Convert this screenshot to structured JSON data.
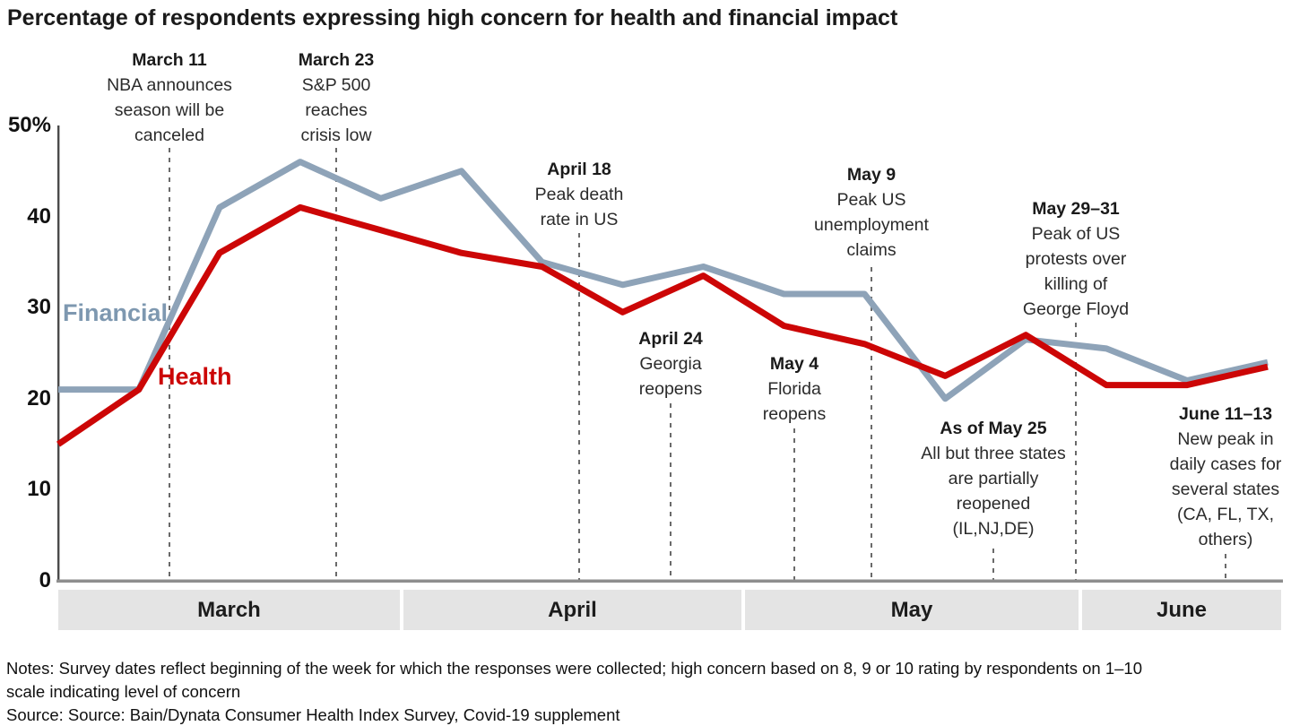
{
  "title": "Percentage of respondents expressing high concern for health and financial impact",
  "notes": {
    "line1": "Notes: Survey dates reflect beginning of the week for which the responses were collected; high concern based on 8, 9 or 10 rating by respondents on 1–10",
    "line2": "scale indicating level of concern",
    "line3": "Source: Source: Bain/Dynata Consumer Health Index Survey, Covid-19 supplement"
  },
  "chart_data": {
    "type": "line",
    "title": "Percentage of respondents expressing high concern for health and financial impact",
    "ylabel": "",
    "ylim": [
      0,
      50
    ],
    "y_ticks": [
      {
        "label": "50%",
        "value": 50
      },
      {
        "label": "40",
        "value": 40
      },
      {
        "label": "30",
        "value": 30
      },
      {
        "label": "20",
        "value": 20
      },
      {
        "label": "10",
        "value": 10
      },
      {
        "label": "0",
        "value": 0
      }
    ],
    "x_axis": {
      "granularity": "weekly survey points",
      "months": [
        {
          "label": "March",
          "points": 5
        },
        {
          "label": "April",
          "points": 4
        },
        {
          "label": "May",
          "points": 4
        },
        {
          "label": "June",
          "points": 3
        }
      ]
    },
    "grid": "off",
    "legend_position": "labels-on-lines",
    "series": [
      {
        "name": "Financial",
        "color": "#8ea3b8",
        "values": [
          21,
          21,
          41,
          46,
          42,
          45,
          35,
          32.5,
          34.5,
          31.5,
          31.5,
          20,
          26.5,
          25.5,
          22,
          24
        ]
      },
      {
        "name": "Health",
        "color": "#cc0606",
        "values": [
          15,
          21,
          36,
          41,
          38.5,
          36,
          34.5,
          29.5,
          33.5,
          28,
          26,
          22.5,
          27,
          21.5,
          21.5,
          23.5
        ]
      }
    ],
    "annotations": [
      {
        "date": "March 11",
        "lines": [
          "NBA announces",
          "season will be",
          "canceled"
        ]
      },
      {
        "date": "March 23",
        "lines": [
          "S&P 500",
          "reaches",
          "crisis low"
        ]
      },
      {
        "date": "April 18",
        "lines": [
          "Peak death",
          "rate in US"
        ]
      },
      {
        "date": "April 24",
        "lines": [
          "Georgia",
          "reopens"
        ]
      },
      {
        "date": "May 4",
        "lines": [
          "Florida",
          "reopens"
        ]
      },
      {
        "date": "May 9",
        "lines": [
          "Peak US",
          "unemployment",
          "claims"
        ]
      },
      {
        "date": "As of May 25",
        "lines": [
          "All but three states",
          "are partially",
          "reopened",
          "(IL,NJ,DE)"
        ]
      },
      {
        "date": "May 29–31",
        "lines": [
          "Peak of US",
          "protests over",
          "killing of",
          "George Floyd"
        ]
      },
      {
        "date": "June 11–13",
        "lines": [
          "New peak in",
          "daily cases for",
          "several states",
          "(CA, FL, TX,",
          "others)"
        ]
      }
    ],
    "colors": {
      "financial_line": "#8ea3b8",
      "health_line": "#cc0606",
      "dashed_guides": "#5a5a5a",
      "month_band_bg": "#e4e4e4",
      "x_axis_line": "#8e8e8e",
      "y_axis_line": "#4a4a4a"
    }
  }
}
